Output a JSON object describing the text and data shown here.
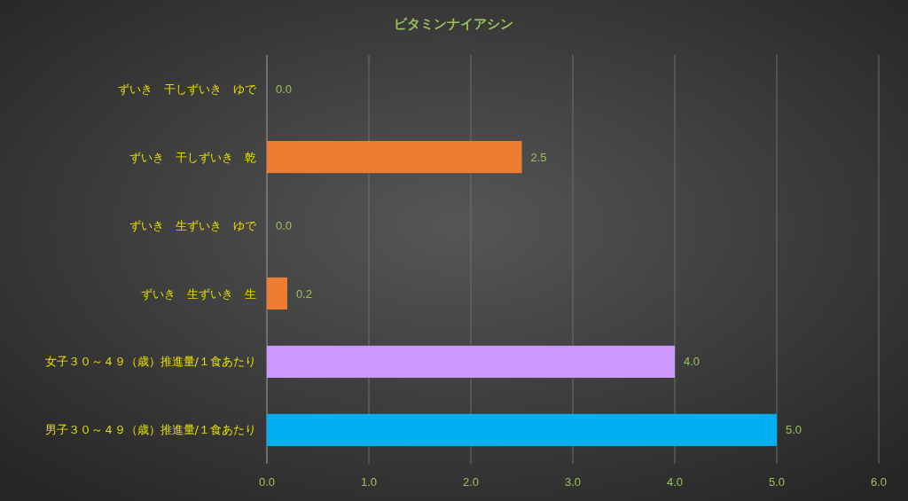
{
  "chart_data": {
    "type": "bar",
    "orientation": "horizontal",
    "title": "ビタミンナイアシン",
    "categories": [
      "ずいき　干しずいき　ゆで",
      "ずいき　干しずいき　乾",
      "ずいき　生ずいき　ゆで",
      "ずいき　生ずいき　生",
      "女子３０～４９（歳）推進量/１食あたり",
      "男子３０～４９（歳）推進量/１食あたり"
    ],
    "values": [
      0,
      2.5,
      0,
      0.2,
      4,
      5
    ],
    "colors": [
      "#ed7d31",
      "#ed7d31",
      "#ed7d31",
      "#ed7d31",
      "#cc99ff",
      "#00b0f0"
    ],
    "value_labels": [
      "0.0",
      "2.5",
      "0.0",
      "0.2",
      "4.0",
      "5.0"
    ],
    "xlim": [
      0,
      6
    ],
    "xticks": [
      {
        "value": 0,
        "label": "0.0"
      },
      {
        "value": 1,
        "label": "1.0"
      },
      {
        "value": 2,
        "label": "2.0"
      },
      {
        "value": 3,
        "label": "3.0"
      },
      {
        "value": 4,
        "label": "4.0"
      },
      {
        "value": 5,
        "label": "5.0"
      },
      {
        "value": 6,
        "label": "6.0"
      }
    ],
    "grid": "x"
  }
}
